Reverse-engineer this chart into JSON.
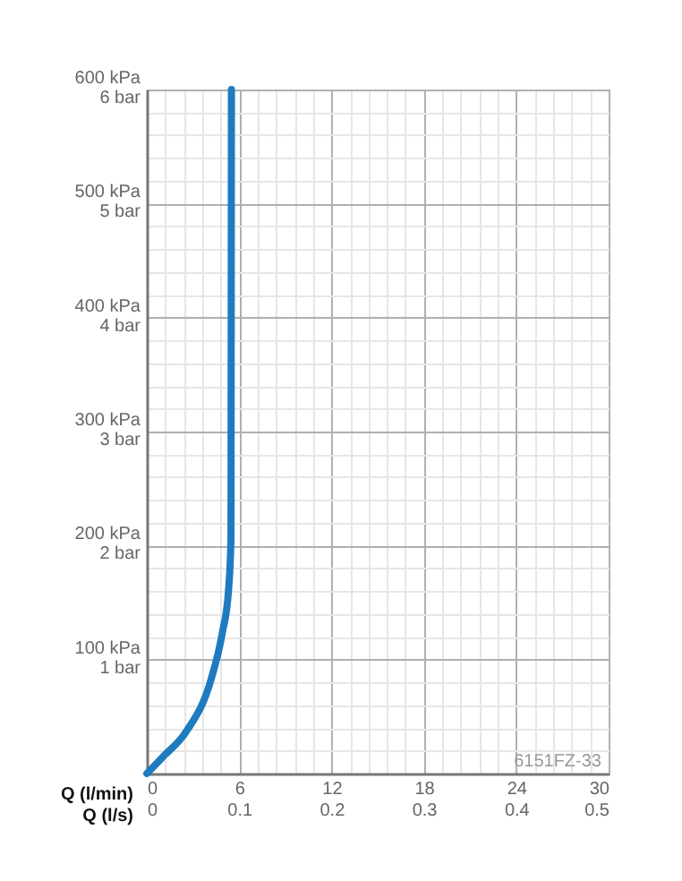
{
  "chart_data": {
    "type": "line",
    "xlabel": "Q (l/min)",
    "x2label": "Q (l/s)",
    "series": [
      {
        "color": "#1f7bc0",
        "x": [
          0,
          1.0,
          2.57,
          4.14,
          4.9,
          5.3,
          5.47,
          5.5
        ],
        "values": [
          0,
          14,
          37,
          81,
          123,
          159,
          206,
          600
        ]
      }
    ],
    "xlim": [
      0,
      30
    ],
    "ylim": [
      0,
      600
    ],
    "xticks": [
      0,
      {
        "value": 1.2,
        "label": null
      },
      {
        "value": 2.4,
        "label": null
      },
      {
        "value": 3.6,
        "label": null
      },
      {
        "value": 4.8,
        "label": null
      },
      6,
      {
        "value": 7.2,
        "label": null
      },
      {
        "value": 8.4,
        "label": null
      },
      {
        "value": 9.6,
        "label": null
      },
      {
        "value": 10.8,
        "label": null
      },
      12,
      {
        "value": 13.2,
        "label": null
      },
      {
        "value": 14.4,
        "label": null
      },
      {
        "value": 15.6,
        "label": null
      },
      {
        "value": 16.8,
        "label": null
      },
      18,
      {
        "value": 19.2,
        "label": null
      },
      {
        "value": 20.4,
        "label": null
      },
      {
        "value": 21.6,
        "label": null
      },
      {
        "value": 22.8,
        "label": null
      },
      24,
      {
        "value": 25.2,
        "label": null
      },
      {
        "value": 26.4,
        "label": null
      },
      {
        "value": 27.6,
        "label": null
      },
      {
        "value": 28.8,
        "label": null
      },
      30
    ],
    "x2lim": [
      0,
      0.5
    ],
    "x2ticks": [
      0,
      0.1,
      0.2,
      0.3,
      0.4,
      0.5
    ],
    "yticks": [
      {
        "value": 0,
        "label": null
      },
      {
        "value": 20,
        "label": null
      },
      {
        "value": 40,
        "label": null
      },
      {
        "value": 60,
        "label": null
      },
      {
        "value": 80,
        "label": null
      },
      {
        "value": 100,
        "label": "100 kPa"
      },
      {
        "value": 120,
        "label": null
      },
      {
        "value": 140,
        "label": null
      },
      {
        "value": 160,
        "label": null
      },
      {
        "value": 180,
        "label": null
      },
      {
        "value": 200,
        "label": "200 kPa"
      },
      {
        "value": 220,
        "label": null
      },
      {
        "value": 240,
        "label": null
      },
      {
        "value": 260,
        "label": null
      },
      {
        "value": 280,
        "label": null
      },
      {
        "value": 300,
        "label": "300 kPa"
      },
      {
        "value": 320,
        "label": null
      },
      {
        "value": 340,
        "label": null
      },
      {
        "value": 360,
        "label": null
      },
      {
        "value": 380,
        "label": null
      },
      {
        "value": 400,
        "label": "400 kPa"
      },
      {
        "value": 420,
        "label": null
      },
      {
        "value": 440,
        "label": null
      },
      {
        "value": 460,
        "label": null
      },
      {
        "value": 480,
        "label": null
      },
      {
        "value": 500,
        "label": "500 kPa"
      },
      {
        "value": 520,
        "label": null
      },
      {
        "value": 540,
        "label": null
      },
      {
        "value": 560,
        "label": null
      },
      {
        "value": 580,
        "label": null
      },
      {
        "value": 600,
        "label": "600 kPa"
      }
    ],
    "y2lim": [
      0,
      6
    ],
    "y2ticks": [
      {
        "value": 1,
        "label": "1 bar"
      },
      {
        "value": 2,
        "label": "2 bar"
      },
      {
        "value": 3,
        "label": "3 bar"
      },
      {
        "value": 4,
        "label": "4 bar"
      },
      {
        "value": 5,
        "label": "5 bar"
      },
      {
        "value": 6,
        "label": "6 bar"
      }
    ],
    "grid": true,
    "marker": "none",
    "line_style": "solid",
    "annotations": [
      "6151FZ-33"
    ]
  }
}
